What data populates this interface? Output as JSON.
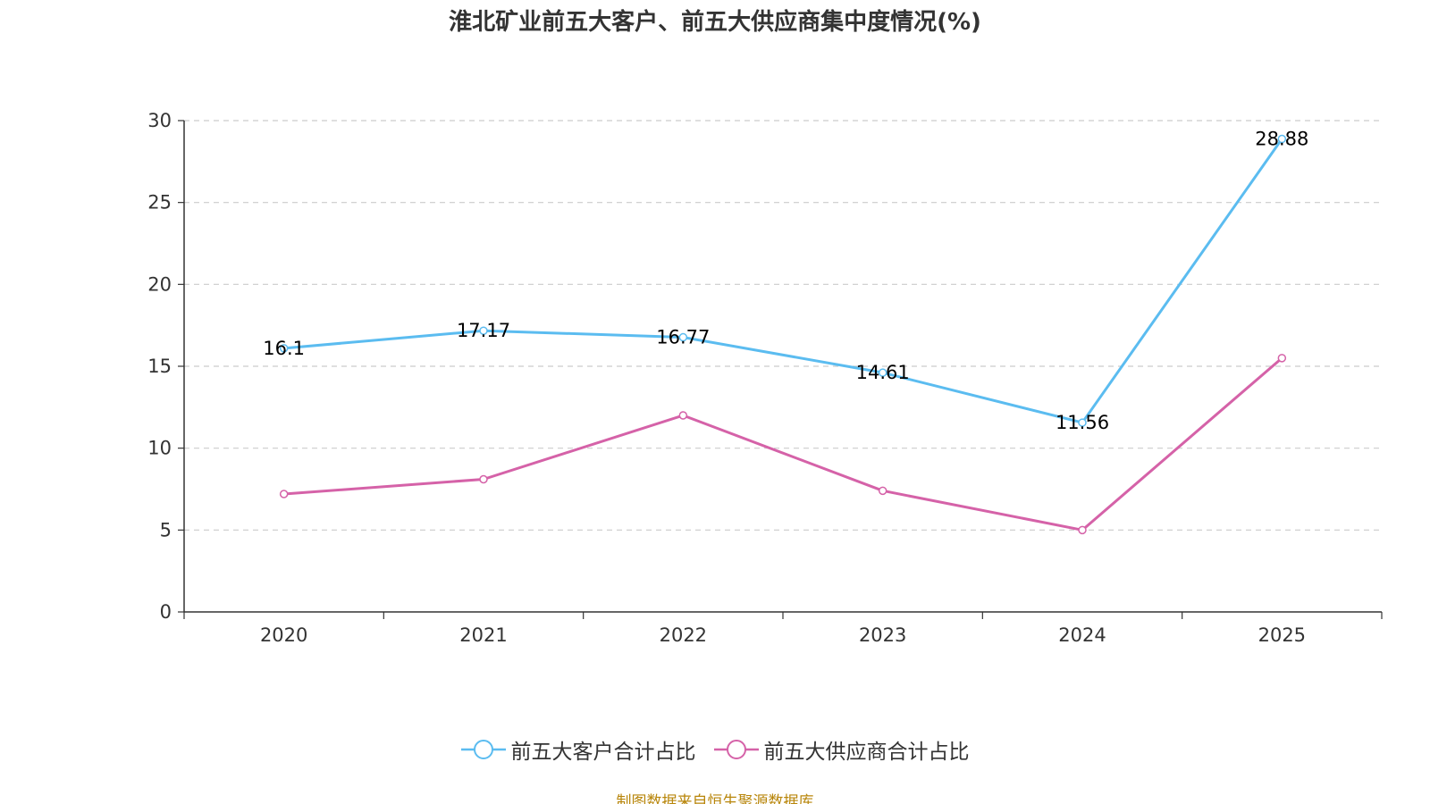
{
  "chart_data": {
    "type": "line",
    "title": "淮北矿业前五大客户、前五大供应商集中度情况(%)",
    "categories": [
      "2020",
      "2021",
      "2022",
      "2023",
      "2024",
      "2025"
    ],
    "ylim": [
      0,
      30
    ],
    "yticks": [
      "0",
      "5",
      "10",
      "15",
      "20",
      "25",
      "30"
    ],
    "xlabel": "",
    "ylabel": "",
    "grid": true,
    "legend_position": "bottom",
    "series": [
      {
        "name": "前五大客户合计占比",
        "color": "#5bbcf0",
        "values": [
          16.1,
          17.17,
          16.77,
          14.61,
          11.56,
          28.88
        ],
        "labels": [
          "16.1",
          "17.17",
          "16.77",
          "14.61",
          "11.56",
          "28.88"
        ],
        "show_labels": true
      },
      {
        "name": "前五大供应商合计占比",
        "color": "#d562a8",
        "values": [
          7.2,
          8.1,
          12.0,
          7.4,
          5.0,
          15.5
        ],
        "show_labels": false
      }
    ]
  },
  "source": "制图数据来自恒生聚源数据库"
}
